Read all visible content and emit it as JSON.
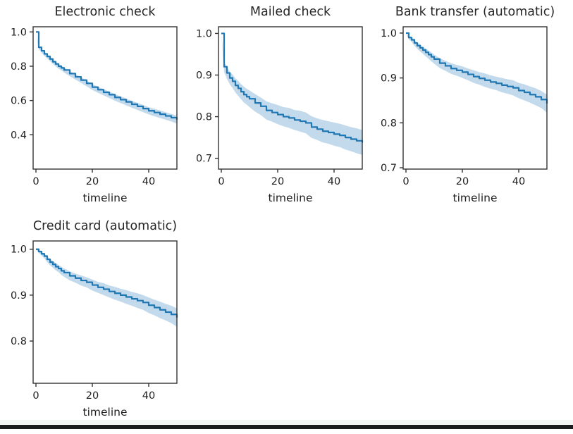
{
  "figure": {
    "xlabel": "timeline",
    "line_color": "#1f77b4",
    "band_color": "#1f77b4",
    "band_opacity": 0.27,
    "axis_color": "#333333",
    "text_color": "#1f1f1f",
    "bottom_bar_color": "#1a1c1d"
  },
  "chart_data": [
    {
      "type": "line",
      "title": "Electronic check",
      "xlabel": "timeline",
      "legend": "none",
      "grid": false,
      "xticks": [
        0,
        20,
        40
      ],
      "xtick_labels": [
        "0",
        "20",
        "40"
      ],
      "yticks": [
        1.0,
        0.8,
        0.6,
        0.4
      ],
      "ytick_labels": [
        "1.0",
        "0.8",
        "0.6",
        "0.4"
      ],
      "xlim": [
        -1,
        50
      ],
      "ylim": [
        0.2,
        1.03
      ],
      "x": [
        0,
        1,
        2,
        3,
        4,
        5,
        6,
        7,
        8,
        9,
        10,
        12,
        14,
        16,
        18,
        20,
        22,
        24,
        26,
        28,
        30,
        32,
        34,
        36,
        38,
        40,
        42,
        44,
        46,
        48,
        50
      ],
      "y": [
        1.0,
        0.91,
        0.89,
        0.872,
        0.857,
        0.842,
        0.826,
        0.813,
        0.8,
        0.79,
        0.778,
        0.757,
        0.738,
        0.719,
        0.7,
        0.678,
        0.663,
        0.648,
        0.634,
        0.618,
        0.605,
        0.592,
        0.578,
        0.566,
        0.553,
        0.54,
        0.53,
        0.52,
        0.51,
        0.5,
        0.488
      ],
      "ci": [
        0,
        0.01,
        0.011,
        0.012,
        0.012,
        0.013,
        0.013,
        0.014,
        0.014,
        0.014,
        0.015,
        0.015,
        0.016,
        0.016,
        0.017,
        0.017,
        0.018,
        0.018,
        0.019,
        0.019,
        0.02,
        0.02,
        0.02,
        0.021,
        0.021,
        0.021,
        0.022,
        0.022,
        0.022,
        0.022,
        0.023
      ]
    },
    {
      "type": "line",
      "title": "Mailed check",
      "xlabel": "timeline",
      "legend": "none",
      "grid": false,
      "xticks": [
        0,
        20,
        40
      ],
      "xtick_labels": [
        "0",
        "20",
        "40"
      ],
      "yticks": [
        1.0,
        0.9,
        0.8,
        0.7
      ],
      "ytick_labels": [
        "1.0",
        "0.9",
        "0.8",
        "0.7"
      ],
      "xlim": [
        -1,
        50
      ],
      "ylim": [
        0.674,
        1.016
      ],
      "x": [
        0,
        1,
        2,
        3,
        4,
        5,
        6,
        7,
        8,
        9,
        10,
        12,
        14,
        16,
        18,
        20,
        22,
        24,
        26,
        28,
        30,
        32,
        34,
        36,
        38,
        40,
        42,
        44,
        46,
        48,
        50
      ],
      "y": [
        1.0,
        0.92,
        0.905,
        0.893,
        0.885,
        0.875,
        0.868,
        0.86,
        0.853,
        0.848,
        0.843,
        0.833,
        0.825,
        0.815,
        0.81,
        0.805,
        0.8,
        0.797,
        0.792,
        0.789,
        0.785,
        0.775,
        0.77,
        0.765,
        0.762,
        0.758,
        0.755,
        0.75,
        0.746,
        0.742,
        0.738
      ],
      "ci": [
        0,
        0.012,
        0.014,
        0.015,
        0.016,
        0.017,
        0.018,
        0.018,
        0.019,
        0.019,
        0.02,
        0.021,
        0.021,
        0.022,
        0.022,
        0.023,
        0.023,
        0.024,
        0.024,
        0.025,
        0.025,
        0.026,
        0.026,
        0.027,
        0.027,
        0.028,
        0.028,
        0.029,
        0.029,
        0.03,
        0.03
      ]
    },
    {
      "type": "line",
      "title": "Bank transfer (automatic)",
      "xlabel": "timeline",
      "legend": "none",
      "grid": false,
      "xticks": [
        0,
        20,
        40
      ],
      "xtick_labels": [
        "0",
        "20",
        "40"
      ],
      "yticks": [
        1.0,
        0.9,
        0.8,
        0.7
      ],
      "ytick_labels": [
        "1.0",
        "0.9",
        "0.8",
        "0.7"
      ],
      "xlim": [
        -1,
        50
      ],
      "ylim": [
        0.697,
        1.014
      ],
      "x": [
        0,
        1,
        2,
        3,
        4,
        5,
        6,
        7,
        8,
        9,
        10,
        12,
        14,
        16,
        18,
        20,
        22,
        24,
        26,
        28,
        30,
        32,
        34,
        36,
        38,
        40,
        42,
        44,
        46,
        48,
        50
      ],
      "y": [
        1.0,
        0.99,
        0.985,
        0.978,
        0.972,
        0.967,
        0.962,
        0.957,
        0.952,
        0.947,
        0.942,
        0.933,
        0.927,
        0.921,
        0.917,
        0.913,
        0.908,
        0.903,
        0.899,
        0.895,
        0.891,
        0.888,
        0.884,
        0.881,
        0.878,
        0.872,
        0.868,
        0.863,
        0.858,
        0.852,
        0.843
      ],
      "ci": [
        0,
        0.004,
        0.005,
        0.006,
        0.007,
        0.008,
        0.008,
        0.009,
        0.009,
        0.01,
        0.01,
        0.011,
        0.011,
        0.012,
        0.012,
        0.013,
        0.013,
        0.014,
        0.014,
        0.015,
        0.015,
        0.015,
        0.016,
        0.016,
        0.017,
        0.017,
        0.018,
        0.018,
        0.019,
        0.019,
        0.02
      ]
    },
    {
      "type": "line",
      "title": "Credit card (automatic)",
      "xlabel": "timeline",
      "legend": "none",
      "grid": false,
      "xticks": [
        0,
        20,
        40
      ],
      "xtick_labels": [
        "0",
        "20",
        "40"
      ],
      "yticks": [
        1.0,
        0.9,
        0.8
      ],
      "ytick_labels": [
        "1.0",
        "0.9",
        "0.8"
      ],
      "xlim": [
        -1,
        50
      ],
      "ylim": [
        0.708,
        1.018
      ],
      "x": [
        0,
        1,
        2,
        3,
        4,
        5,
        6,
        7,
        8,
        9,
        10,
        12,
        14,
        16,
        18,
        20,
        22,
        24,
        26,
        28,
        30,
        32,
        34,
        36,
        38,
        40,
        42,
        44,
        46,
        48,
        50
      ],
      "y": [
        1.0,
        0.995,
        0.99,
        0.985,
        0.978,
        0.972,
        0.967,
        0.962,
        0.958,
        0.953,
        0.949,
        0.942,
        0.937,
        0.932,
        0.928,
        0.922,
        0.917,
        0.913,
        0.908,
        0.904,
        0.9,
        0.896,
        0.892,
        0.888,
        0.884,
        0.878,
        0.873,
        0.868,
        0.863,
        0.858,
        0.851
      ],
      "ci": [
        0,
        0.003,
        0.004,
        0.005,
        0.006,
        0.007,
        0.007,
        0.008,
        0.008,
        0.009,
        0.009,
        0.01,
        0.01,
        0.011,
        0.011,
        0.012,
        0.012,
        0.013,
        0.013,
        0.014,
        0.014,
        0.015,
        0.015,
        0.016,
        0.016,
        0.017,
        0.017,
        0.018,
        0.018,
        0.019,
        0.02
      ]
    }
  ]
}
